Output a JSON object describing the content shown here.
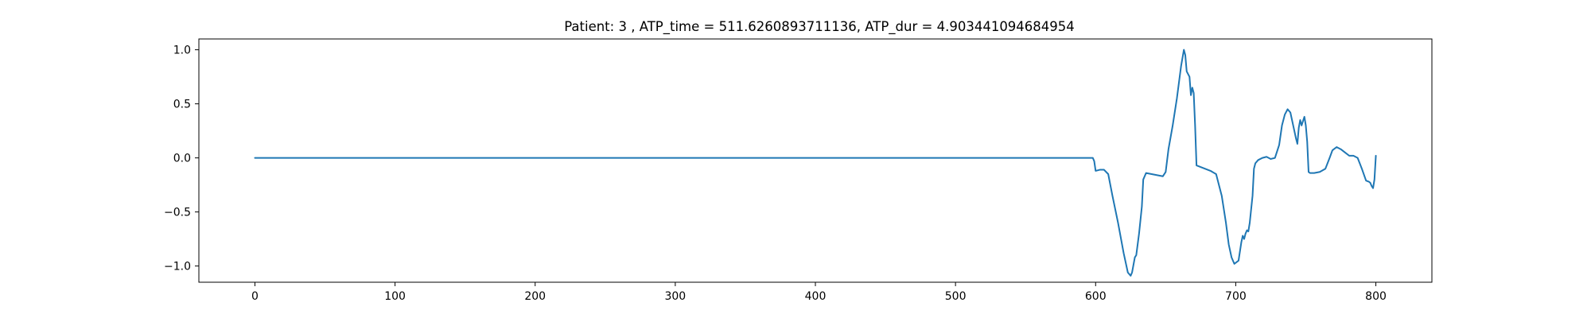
{
  "chart_data": {
    "type": "line",
    "title": "Patient: 3 , ATP_time = 511.6260893711136, ATP_dur = 4.903441094684954",
    "xlabel": "",
    "ylabel": "",
    "xlim": [
      -40,
      840
    ],
    "ylim": [
      -1.15,
      1.1
    ],
    "xticks": [
      0,
      100,
      200,
      300,
      400,
      500,
      600,
      700,
      800
    ],
    "xtick_labels": [
      "0",
      "100",
      "200",
      "300",
      "400",
      "500",
      "600",
      "700",
      "800"
    ],
    "yticks": [
      -1.0,
      -0.5,
      0.0,
      0.5,
      1.0
    ],
    "ytick_labels": [
      "−1.0",
      "−0.5",
      "0.0",
      "0.5",
      "1.0"
    ],
    "grid": false,
    "line_color": "#1f77b4",
    "series": [
      {
        "x": [
          0,
          100,
          200,
          300,
          400,
          500,
          598,
          599,
          600,
          603,
          606,
          609,
          612,
          616,
          620,
          623,
          625,
          626,
          628,
          629,
          631,
          633,
          634,
          636,
          640,
          644,
          648,
          650,
          652,
          655,
          658,
          661,
          663,
          664,
          665,
          667,
          668,
          669,
          670,
          671,
          672,
          674,
          678,
          682,
          686,
          690,
          693,
          695,
          697,
          699,
          702,
          704,
          705,
          706,
          707,
          708,
          709,
          710,
          712,
          713,
          714,
          716,
          719,
          722,
          725,
          728,
          731,
          733,
          735,
          737,
          739,
          741,
          743,
          744,
          745,
          746,
          747,
          748,
          749,
          750,
          751,
          752,
          753,
          754,
          756,
          760,
          764,
          767,
          769,
          772,
          775,
          778,
          781,
          784,
          787,
          790,
          793,
          795,
          796,
          797,
          798,
          799,
          800
        ],
        "y": [
          0.0,
          0.0,
          0.0,
          0.0,
          0.0,
          0.0,
          0.0,
          -0.03,
          -0.12,
          -0.11,
          -0.11,
          -0.15,
          -0.35,
          -0.6,
          -0.88,
          -1.06,
          -1.09,
          -1.06,
          -0.92,
          -0.9,
          -0.7,
          -0.45,
          -0.2,
          -0.14,
          -0.15,
          -0.16,
          -0.17,
          -0.13,
          0.08,
          0.3,
          0.55,
          0.85,
          1.0,
          0.95,
          0.8,
          0.75,
          0.58,
          0.65,
          0.6,
          0.3,
          -0.07,
          -0.08,
          -0.1,
          -0.12,
          -0.15,
          -0.35,
          -0.6,
          -0.8,
          -0.92,
          -0.98,
          -0.95,
          -0.78,
          -0.72,
          -0.75,
          -0.7,
          -0.67,
          -0.68,
          -0.6,
          -0.35,
          -0.1,
          -0.05,
          -0.02,
          0.0,
          0.01,
          -0.01,
          0.0,
          0.12,
          0.3,
          0.4,
          0.45,
          0.42,
          0.3,
          0.18,
          0.13,
          0.28,
          0.35,
          0.3,
          0.34,
          0.38,
          0.3,
          0.15,
          -0.13,
          -0.14,
          -0.14,
          -0.14,
          -0.13,
          -0.1,
          0.0,
          0.07,
          0.1,
          0.08,
          0.05,
          0.02,
          0.02,
          0.0,
          -0.1,
          -0.21,
          -0.22,
          -0.23,
          -0.26,
          -0.28,
          -0.2,
          0.02
        ]
      }
    ]
  }
}
